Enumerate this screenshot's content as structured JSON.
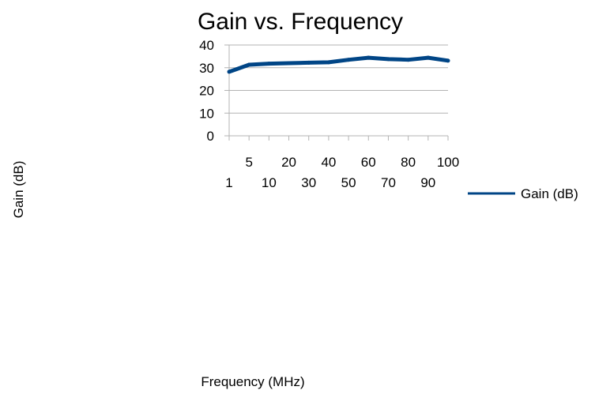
{
  "chart_data": {
    "type": "line",
    "title": "Gain vs. Frequency",
    "xlabel": "Frequency (MHz)",
    "ylabel": "Gain (dB)",
    "categories": [
      "1",
      "5",
      "10",
      "20",
      "30",
      "40",
      "50",
      "60",
      "70",
      "80",
      "90",
      "100"
    ],
    "series": [
      {
        "name": "Gain (dB)",
        "values": [
          28.2,
          31.3,
          31.8,
          32.0,
          32.2,
          32.4,
          33.5,
          34.4,
          33.8,
          33.5,
          34.4,
          33.1
        ]
      }
    ],
    "ylim": [
      0,
      40
    ],
    "yticks": [
      0,
      10,
      20,
      30,
      40
    ],
    "grid": "horizontal",
    "legend_position": "right",
    "colors": {
      "line": "#004586",
      "grid": "#b3b3b3",
      "axis": "#b3b3b3"
    }
  }
}
